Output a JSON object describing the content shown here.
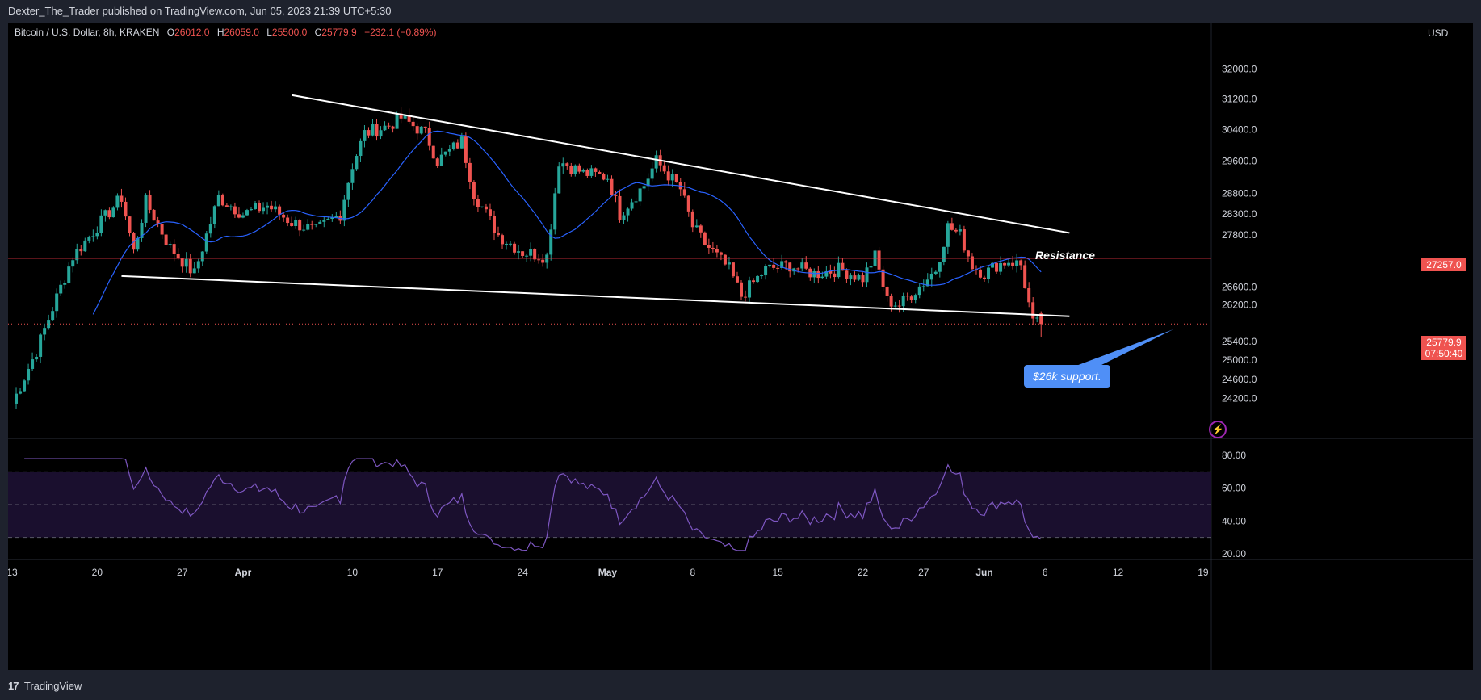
{
  "header": {
    "published_by": "Dexter_The_Trader published on TradingView.com, Jun 05, 2023 21:39 UTC+5:30"
  },
  "legend": {
    "symbol": "Bitcoin / U.S. Dollar, 8h, KRAKEN",
    "o_label": "O",
    "o_value": "26012.0",
    "h_label": "H",
    "h_value": "26059.0",
    "l_label": "L",
    "l_value": "25500.0",
    "c_label": "C",
    "c_value": "25779.9",
    "change": "−232.1 (−0.89%)"
  },
  "price_axis": {
    "currency": "USD",
    "current_price": "25779.9",
    "countdown": "07:50:40",
    "level_tag": "27257.0"
  },
  "annotations": {
    "resistance": "Resistance",
    "support_callout": "$26k support."
  },
  "footer": {
    "brand": "TradingView",
    "logo": "17"
  },
  "colors": {
    "background": "#000000",
    "up_candle": "#26a69a",
    "down_candle": "#ef5350",
    "ma_line": "#2962ff",
    "rsi_line": "#7e57c2",
    "trendline": "#ffffff",
    "level_line": "#f23645",
    "callout": "#4f8ff7"
  },
  "icons": {
    "lightning": "lightning-bolt-icon",
    "logo": "tradingview-logo-icon"
  },
  "chart_data": [
    {
      "type": "candlestick",
      "title": "Bitcoin / U.S. Dollar, 8h, KRAKEN",
      "ylim": [
        23900,
        32400
      ],
      "y_scale": "log",
      "y_ticks": [
        32000,
        31200,
        30400,
        29600,
        28800,
        28300,
        27800,
        26600,
        26200,
        25400,
        25000,
        24600,
        24200
      ],
      "x_ticks": [
        "13",
        "20",
        "27",
        "Apr",
        "10",
        "17",
        "24",
        "May",
        "8",
        "15",
        "22",
        "27",
        "Jun",
        "6",
        "12",
        "19"
      ],
      "key_prices": [
        {
          "date": "2023-03-13",
          "price": 24100
        },
        {
          "date": "2023-03-15",
          "price": 25200
        },
        {
          "date": "2023-03-17",
          "price": 26600
        },
        {
          "date": "2023-03-18",
          "price": 27300
        },
        {
          "date": "2023-03-20",
          "price": 28000
        },
        {
          "date": "2023-03-22",
          "price": 28700
        },
        {
          "date": "2023-03-23",
          "price": 27400
        },
        {
          "date": "2023-03-24",
          "price": 28600
        },
        {
          "date": "2023-03-26",
          "price": 27500
        },
        {
          "date": "2023-03-28",
          "price": 26900
        },
        {
          "date": "2023-03-30",
          "price": 28700
        },
        {
          "date": "2023-04-01",
          "price": 28300
        },
        {
          "date": "2023-04-03",
          "price": 28500
        },
        {
          "date": "2023-04-05",
          "price": 28100
        },
        {
          "date": "2023-04-07",
          "price": 27900
        },
        {
          "date": "2023-04-09",
          "price": 28300
        },
        {
          "date": "2023-04-10",
          "price": 29500
        },
        {
          "date": "2023-04-11",
          "price": 30300
        },
        {
          "date": "2023-04-13",
          "price": 30500
        },
        {
          "date": "2023-04-14",
          "price": 30700
        },
        {
          "date": "2023-04-16",
          "price": 30300
        },
        {
          "date": "2023-04-17",
          "price": 29600
        },
        {
          "date": "2023-04-19",
          "price": 30100
        },
        {
          "date": "2023-04-20",
          "price": 28800
        },
        {
          "date": "2023-04-22",
          "price": 27800
        },
        {
          "date": "2023-04-24",
          "price": 27400
        },
        {
          "date": "2023-04-26",
          "price": 27300
        },
        {
          "date": "2023-04-27",
          "price": 29600
        },
        {
          "date": "2023-04-29",
          "price": 29300
        },
        {
          "date": "2023-05-01",
          "price": 29200
        },
        {
          "date": "2023-05-02",
          "price": 28300
        },
        {
          "date": "2023-05-04",
          "price": 29000
        },
        {
          "date": "2023-05-05",
          "price": 29600
        },
        {
          "date": "2023-05-07",
          "price": 28900
        },
        {
          "date": "2023-05-08",
          "price": 28000
        },
        {
          "date": "2023-05-09",
          "price": 27600
        },
        {
          "date": "2023-05-11",
          "price": 27000
        },
        {
          "date": "2023-05-12",
          "price": 26400
        },
        {
          "date": "2023-05-14",
          "price": 27000
        },
        {
          "date": "2023-05-16",
          "price": 27100
        },
        {
          "date": "2023-05-18",
          "price": 26900
        },
        {
          "date": "2023-05-20",
          "price": 27000
        },
        {
          "date": "2023-05-22",
          "price": 26800
        },
        {
          "date": "2023-05-23",
          "price": 27300
        },
        {
          "date": "2023-05-24",
          "price": 26300
        },
        {
          "date": "2023-05-25",
          "price": 26200
        },
        {
          "date": "2023-05-27",
          "price": 26700
        },
        {
          "date": "2023-05-28",
          "price": 27000
        },
        {
          "date": "2023-05-29",
          "price": 28000
        },
        {
          "date": "2023-05-30",
          "price": 27800
        },
        {
          "date": "2023-05-31",
          "price": 27100
        },
        {
          "date": "2023-06-01",
          "price": 26900
        },
        {
          "date": "2023-06-02",
          "price": 27100
        },
        {
          "date": "2023-06-03",
          "price": 27200
        },
        {
          "date": "2023-06-04",
          "price": 27100
        },
        {
          "date": "2023-06-05",
          "price": 25780
        }
      ],
      "last_candle": {
        "open": 26012.0,
        "high": 26059.0,
        "low": 25500.0,
        "close": 25779.9
      },
      "horizontal_level": 27257.0,
      "trendlines": [
        {
          "name": "resistance",
          "from": {
            "date": "2023-04-05",
            "price": 31300
          },
          "to": {
            "date": "2023-06-08",
            "price": 27850
          }
        },
        {
          "name": "support",
          "from": {
            "date": "2023-03-22",
            "price": 26850
          },
          "to": {
            "date": "2023-06-08",
            "price": 25950
          }
        }
      ]
    },
    {
      "type": "line",
      "indicator": "RSI",
      "ylim": [
        20,
        85
      ],
      "y_ticks": [
        80.0,
        60.0,
        40.0,
        20.0
      ],
      "band": [
        30,
        70
      ],
      "midline": 50
    }
  ]
}
